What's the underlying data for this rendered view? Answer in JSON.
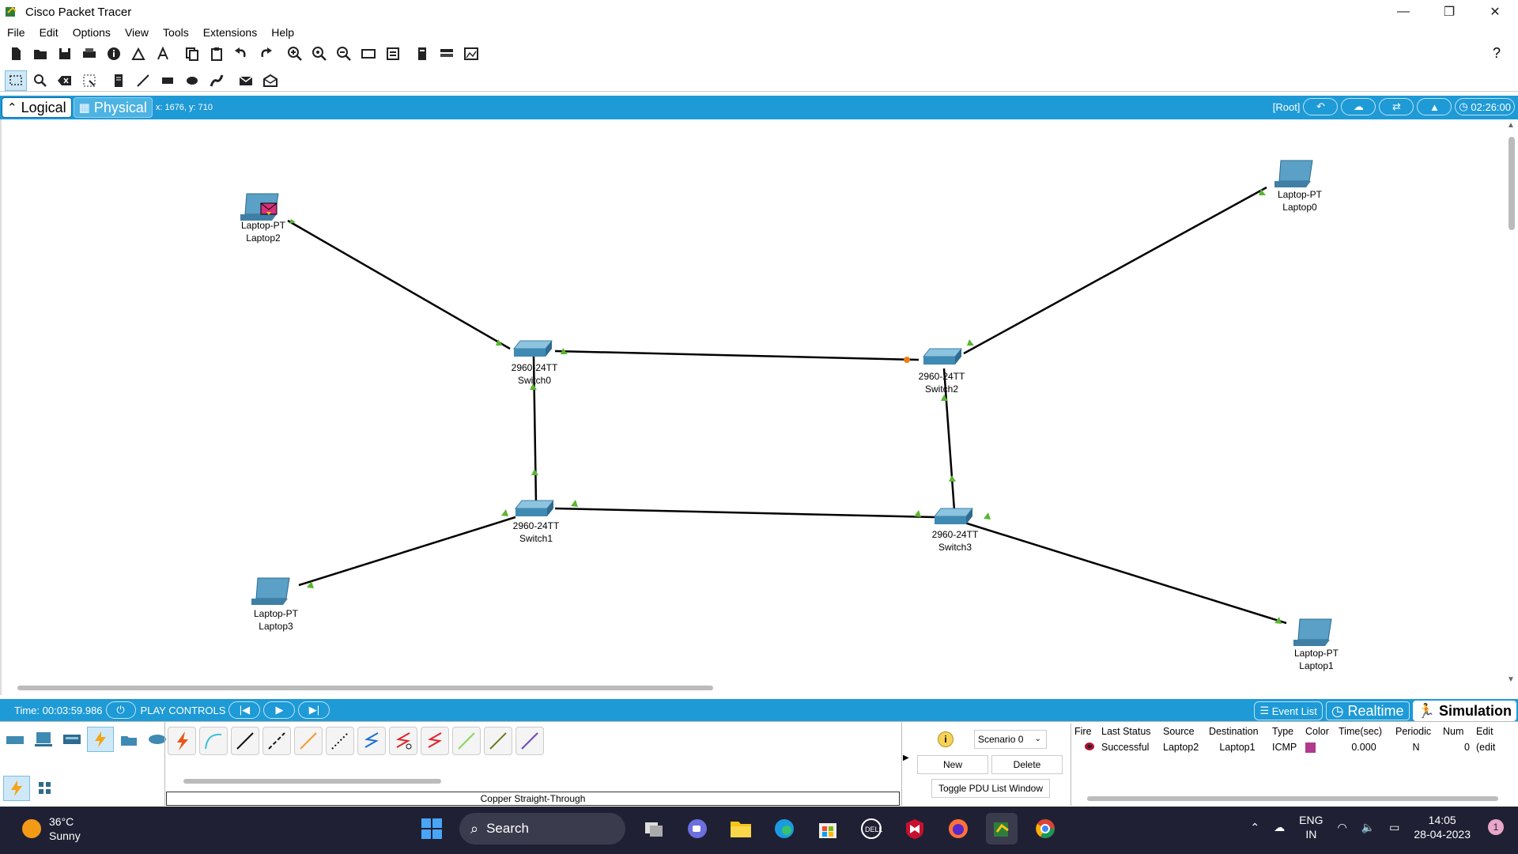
{
  "window": {
    "title": "Cisco Packet Tracer",
    "controls": {
      "minimize": "—",
      "maximize": "❐",
      "close": "✕"
    }
  },
  "menu": [
    "File",
    "Edit",
    "Options",
    "View",
    "Tools",
    "Extensions",
    "Help"
  ],
  "toolbar1": {
    "icons": [
      "new-icon",
      "open-icon",
      "save-icon",
      "print-icon",
      "info-icon",
      "activity-wizard-icon",
      "custom-device-icon",
      "copy-icon",
      "paste-icon",
      "undo-icon",
      "redo-icon",
      "zoom-in-icon",
      "zoom-reset-icon",
      "zoom-out-icon",
      "drawing-palette-icon",
      "custom-devices-dialog-icon",
      "cluster-icon",
      "ipc-icon",
      "viewport-icon"
    ],
    "help": "?"
  },
  "toolbar2": {
    "icons": [
      "select-icon",
      "inspect-icon",
      "delete-icon",
      "resize-icon",
      "note-icon",
      "line-icon",
      "rectangle-icon",
      "ellipse-icon",
      "freeform-icon",
      "simple-pdu-icon",
      "complex-pdu-icon"
    ]
  },
  "modebar": {
    "logical": "Logical",
    "physical": "Physical",
    "coords": "x: 1676, y: 710",
    "root": "[Root]",
    "clock": "02:26:00"
  },
  "devices": [
    {
      "id": "laptop2",
      "type": "Laptop-PT",
      "name": "Laptop2"
    },
    {
      "id": "laptop0",
      "type": "Laptop-PT",
      "name": "Laptop0"
    },
    {
      "id": "switch0",
      "type": "2960-24TT",
      "name": "Switch0"
    },
    {
      "id": "switch2",
      "type": "2960-24TT",
      "name": "Switch2"
    },
    {
      "id": "switch1",
      "type": "2960-24TT",
      "name": "Switch1"
    },
    {
      "id": "switch3",
      "type": "2960-24TT",
      "name": "Switch3"
    },
    {
      "id": "laptop3",
      "type": "Laptop-PT",
      "name": "Laptop3"
    },
    {
      "id": "laptop1",
      "type": "Laptop-PT",
      "name": "Laptop1"
    }
  ],
  "links": [
    {
      "from": "Laptop2",
      "to": "Switch0"
    },
    {
      "from": "Laptop0",
      "to": "Switch2"
    },
    {
      "from": "Switch0",
      "to": "Switch2"
    },
    {
      "from": "Switch0",
      "to": "Switch1"
    },
    {
      "from": "Switch2",
      "to": "Switch3"
    },
    {
      "from": "Switch1",
      "to": "Switch3"
    },
    {
      "from": "Laptop3",
      "to": "Switch1"
    },
    {
      "from": "Switch3",
      "to": "Laptop1"
    }
  ],
  "status": {
    "time": "Time: 00:03:59.986",
    "play_controls": "PLAY CONTROLS",
    "event_list": "Event List",
    "realtime": "Realtime",
    "simulation": "Simulation"
  },
  "bottom": {
    "selected_cable": "Copper Straight-Through",
    "scenario": "Scenario 0",
    "new": "New",
    "delete": "Delete",
    "toggle": "Toggle PDU List Window",
    "pdu_headers": [
      "Fire",
      "Last Status",
      "Source",
      "Destination",
      "Type",
      "Color",
      "Time(sec)",
      "Periodic",
      "Num",
      "Edit"
    ],
    "pdu_row": {
      "last_status": "Successful",
      "source": "Laptop2",
      "destination": "Laptop1",
      "type": "ICMP",
      "color": "#b03a8e",
      "time": "0.000",
      "periodic": "N",
      "num": "0",
      "edit": "(edit"
    }
  },
  "taskbar": {
    "temp": "36°C",
    "weather": "Sunny",
    "search": "Search",
    "lang1": "ENG",
    "lang2": "IN",
    "time": "14:05",
    "date": "28-04-2023",
    "notifications": "1"
  }
}
